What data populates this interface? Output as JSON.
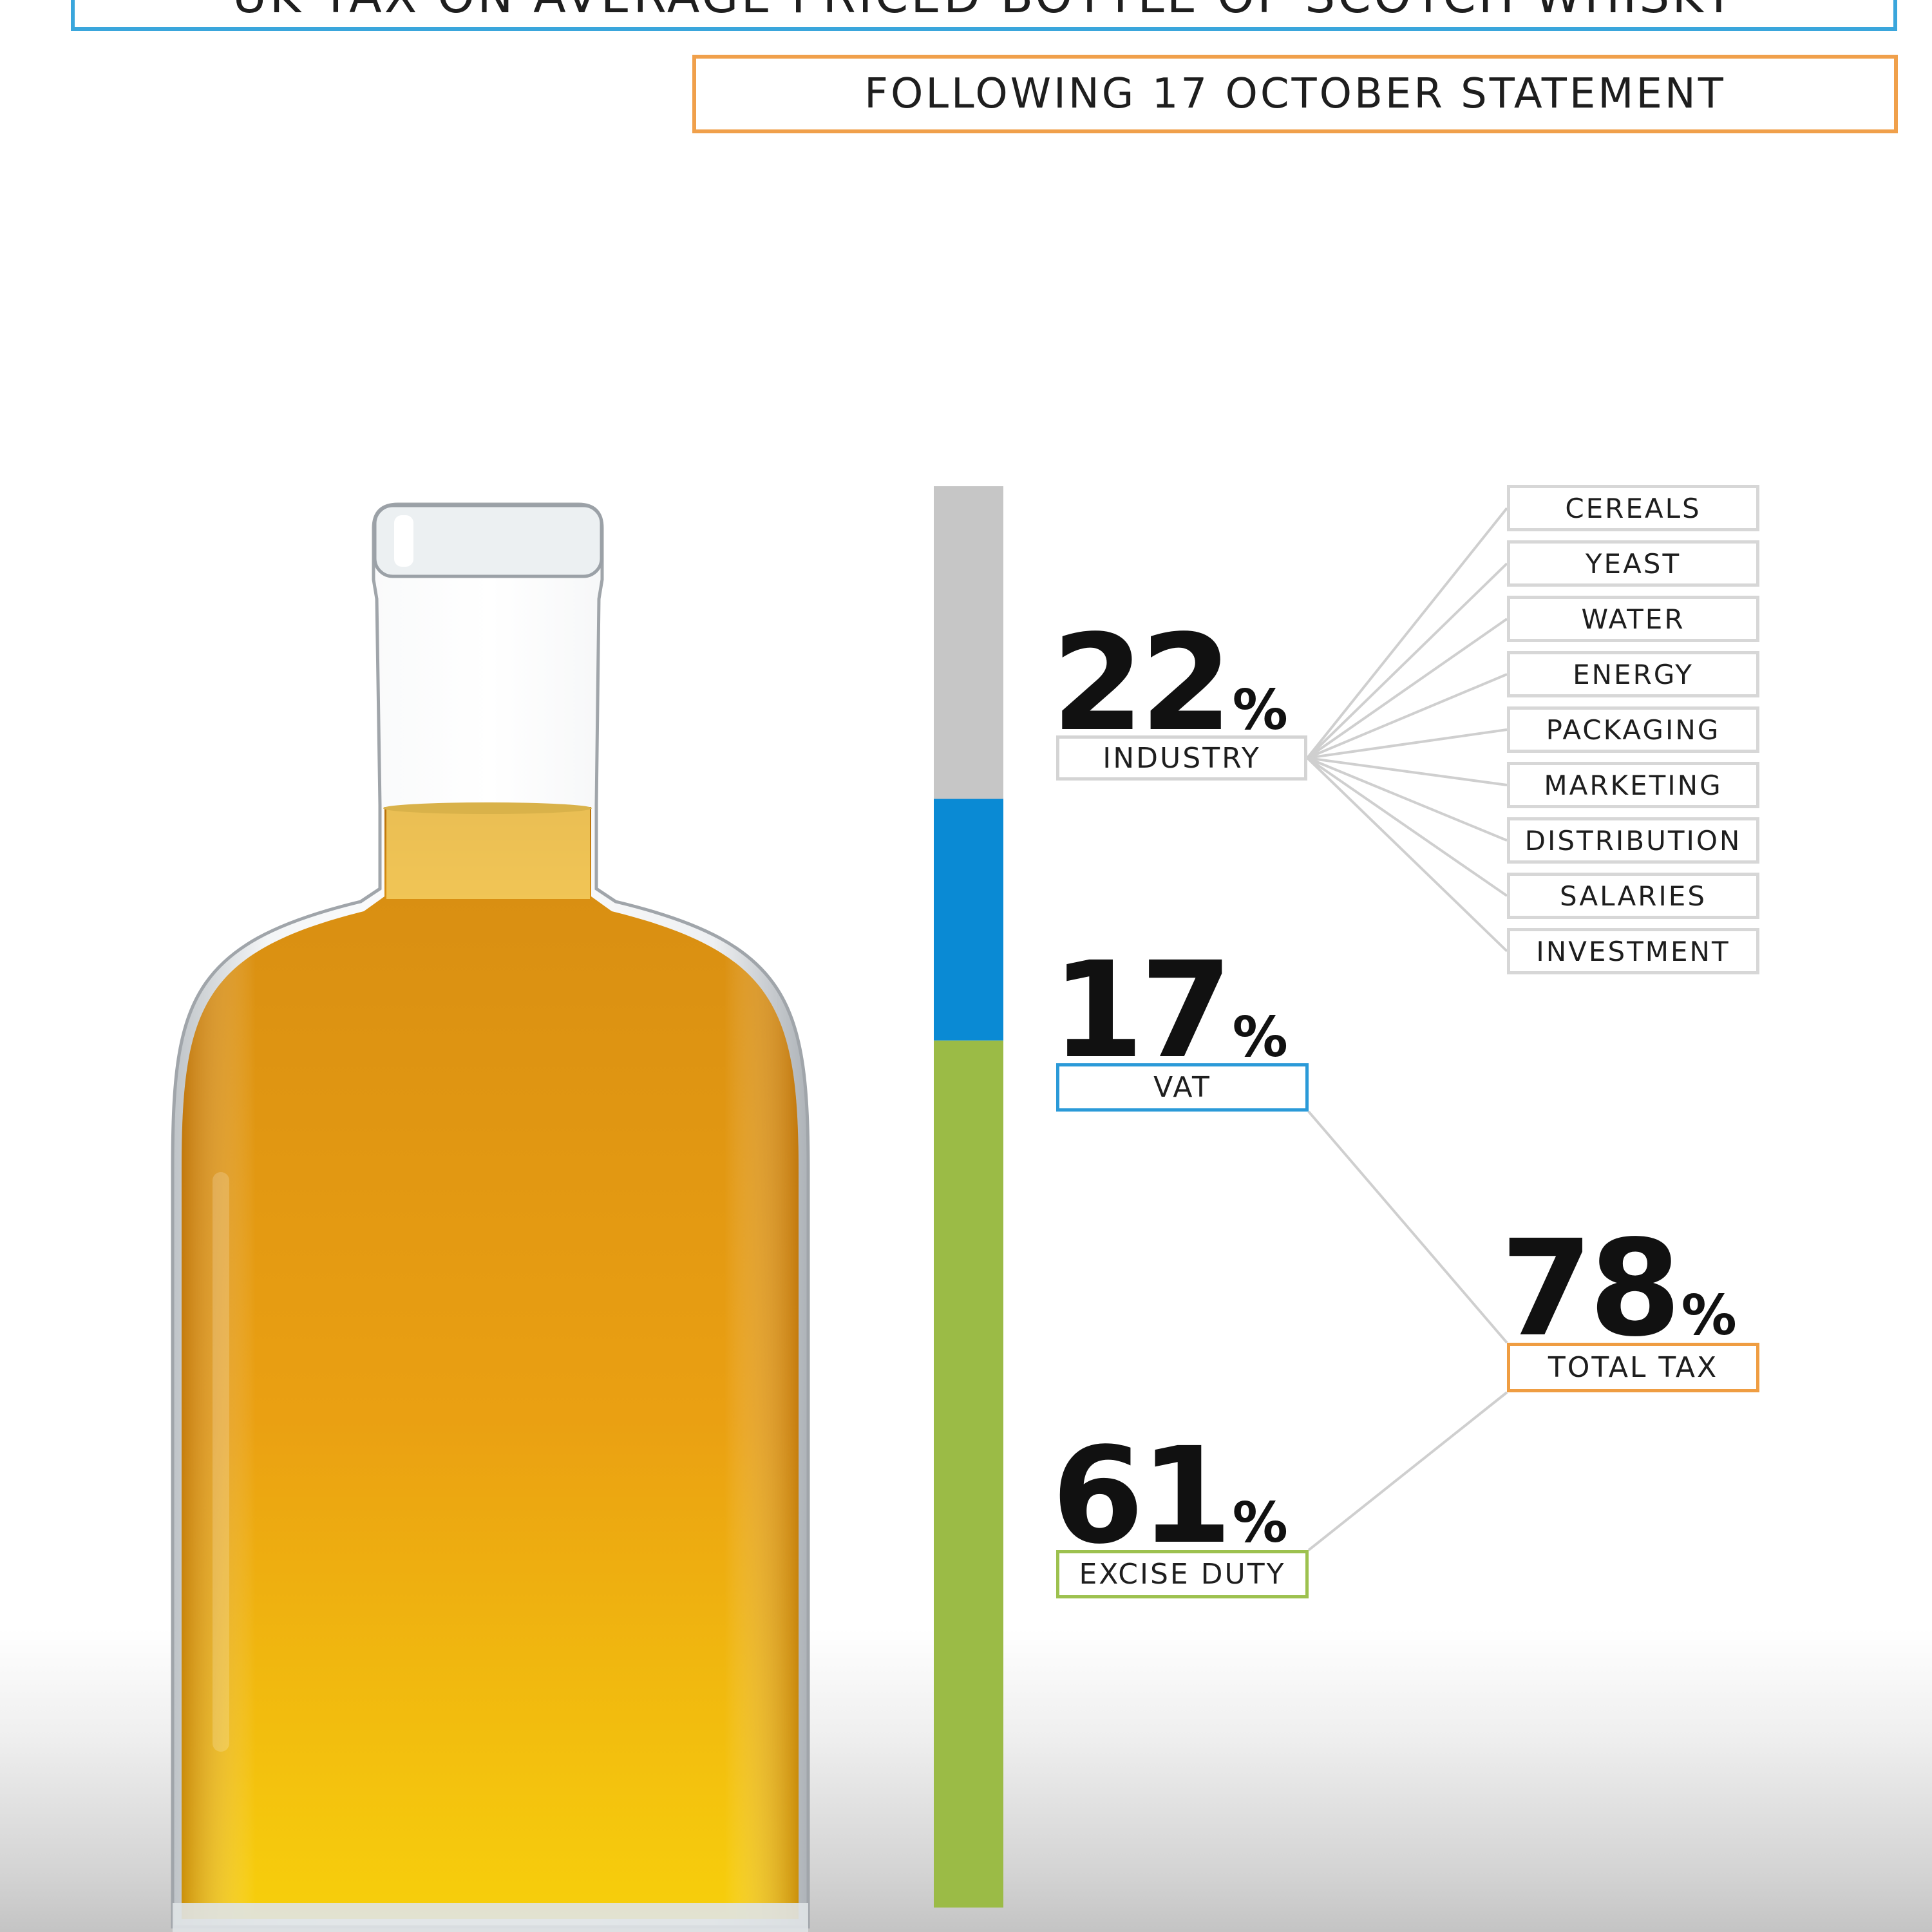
{
  "title": "UK TAX ON AVERAGE PRICED BOTTLE OF SCOTCH WHISKY",
  "subtitle": "FOLLOWING 17 OCTOBER STATEMENT",
  "chart_data": {
    "type": "bar",
    "stacked": true,
    "segments": [
      {
        "label": "INDUSTRY",
        "value": 22,
        "color": "#c6c6c6"
      },
      {
        "label": "VAT",
        "value": 17,
        "color": "#0a8ad4"
      },
      {
        "label": "EXCISE DUTY",
        "value": 61,
        "color": "#9bbb46"
      }
    ],
    "total": {
      "label": "TOTAL TAX",
      "value": 78
    },
    "industry_costs": [
      "CEREALS",
      "YEAST",
      "WATER",
      "ENERGY",
      "PACKAGING",
      "MARKETING",
      "DISTRIBUTION",
      "SALARIES",
      "INVESTMENT"
    ],
    "percent_symbol": "%",
    "colors": {
      "title_border": "#3aa6dc",
      "subtitle_border": "#f0a04b",
      "total_border": "#ef9d42",
      "connector": "#cfcfcf",
      "liquid": "#e8a010"
    }
  }
}
